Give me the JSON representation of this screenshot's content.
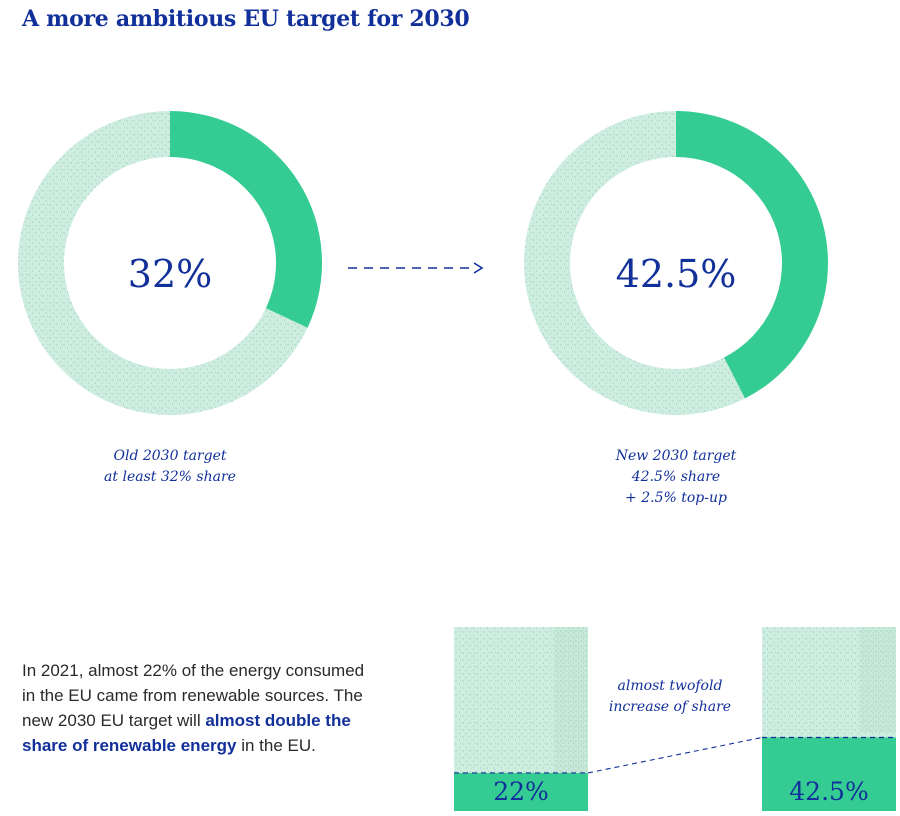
{
  "title": "A more ambitious EU target for 2030",
  "colors": {
    "accent_blue": "#12309a",
    "green": "#34cc92",
    "light_green": "#cdeee0",
    "speckle": "#7fa79a"
  },
  "chart_data": [
    {
      "type": "pie",
      "variant": "donut",
      "center_label": "32%",
      "value": 32,
      "remainder": 68,
      "unit": "%",
      "caption": [
        "Old 2030 target",
        "at least 32% share"
      ]
    },
    {
      "type": "pie",
      "variant": "donut",
      "center_label": "42.5%",
      "value": 42.5,
      "remainder": 57.5,
      "unit": "%",
      "caption": [
        "New 2030 target",
        "42.5% share",
        "+ 2.5% top-up"
      ]
    },
    {
      "type": "bar",
      "categories": [
        "",
        ""
      ],
      "values": [
        22,
        42.5
      ],
      "value_labels": [
        "22%",
        "42.5%"
      ],
      "ylim": [
        0,
        100
      ],
      "annotation": [
        "almost twofold",
        "increase of share"
      ]
    }
  ],
  "body_text": {
    "part1": "In 2021, almost 22% of the energy consumed in the EU came from renewable sources. The new 2030 EU target will ",
    "highlight": "almost double the share of renewable energy",
    "part2": " in the EU."
  }
}
